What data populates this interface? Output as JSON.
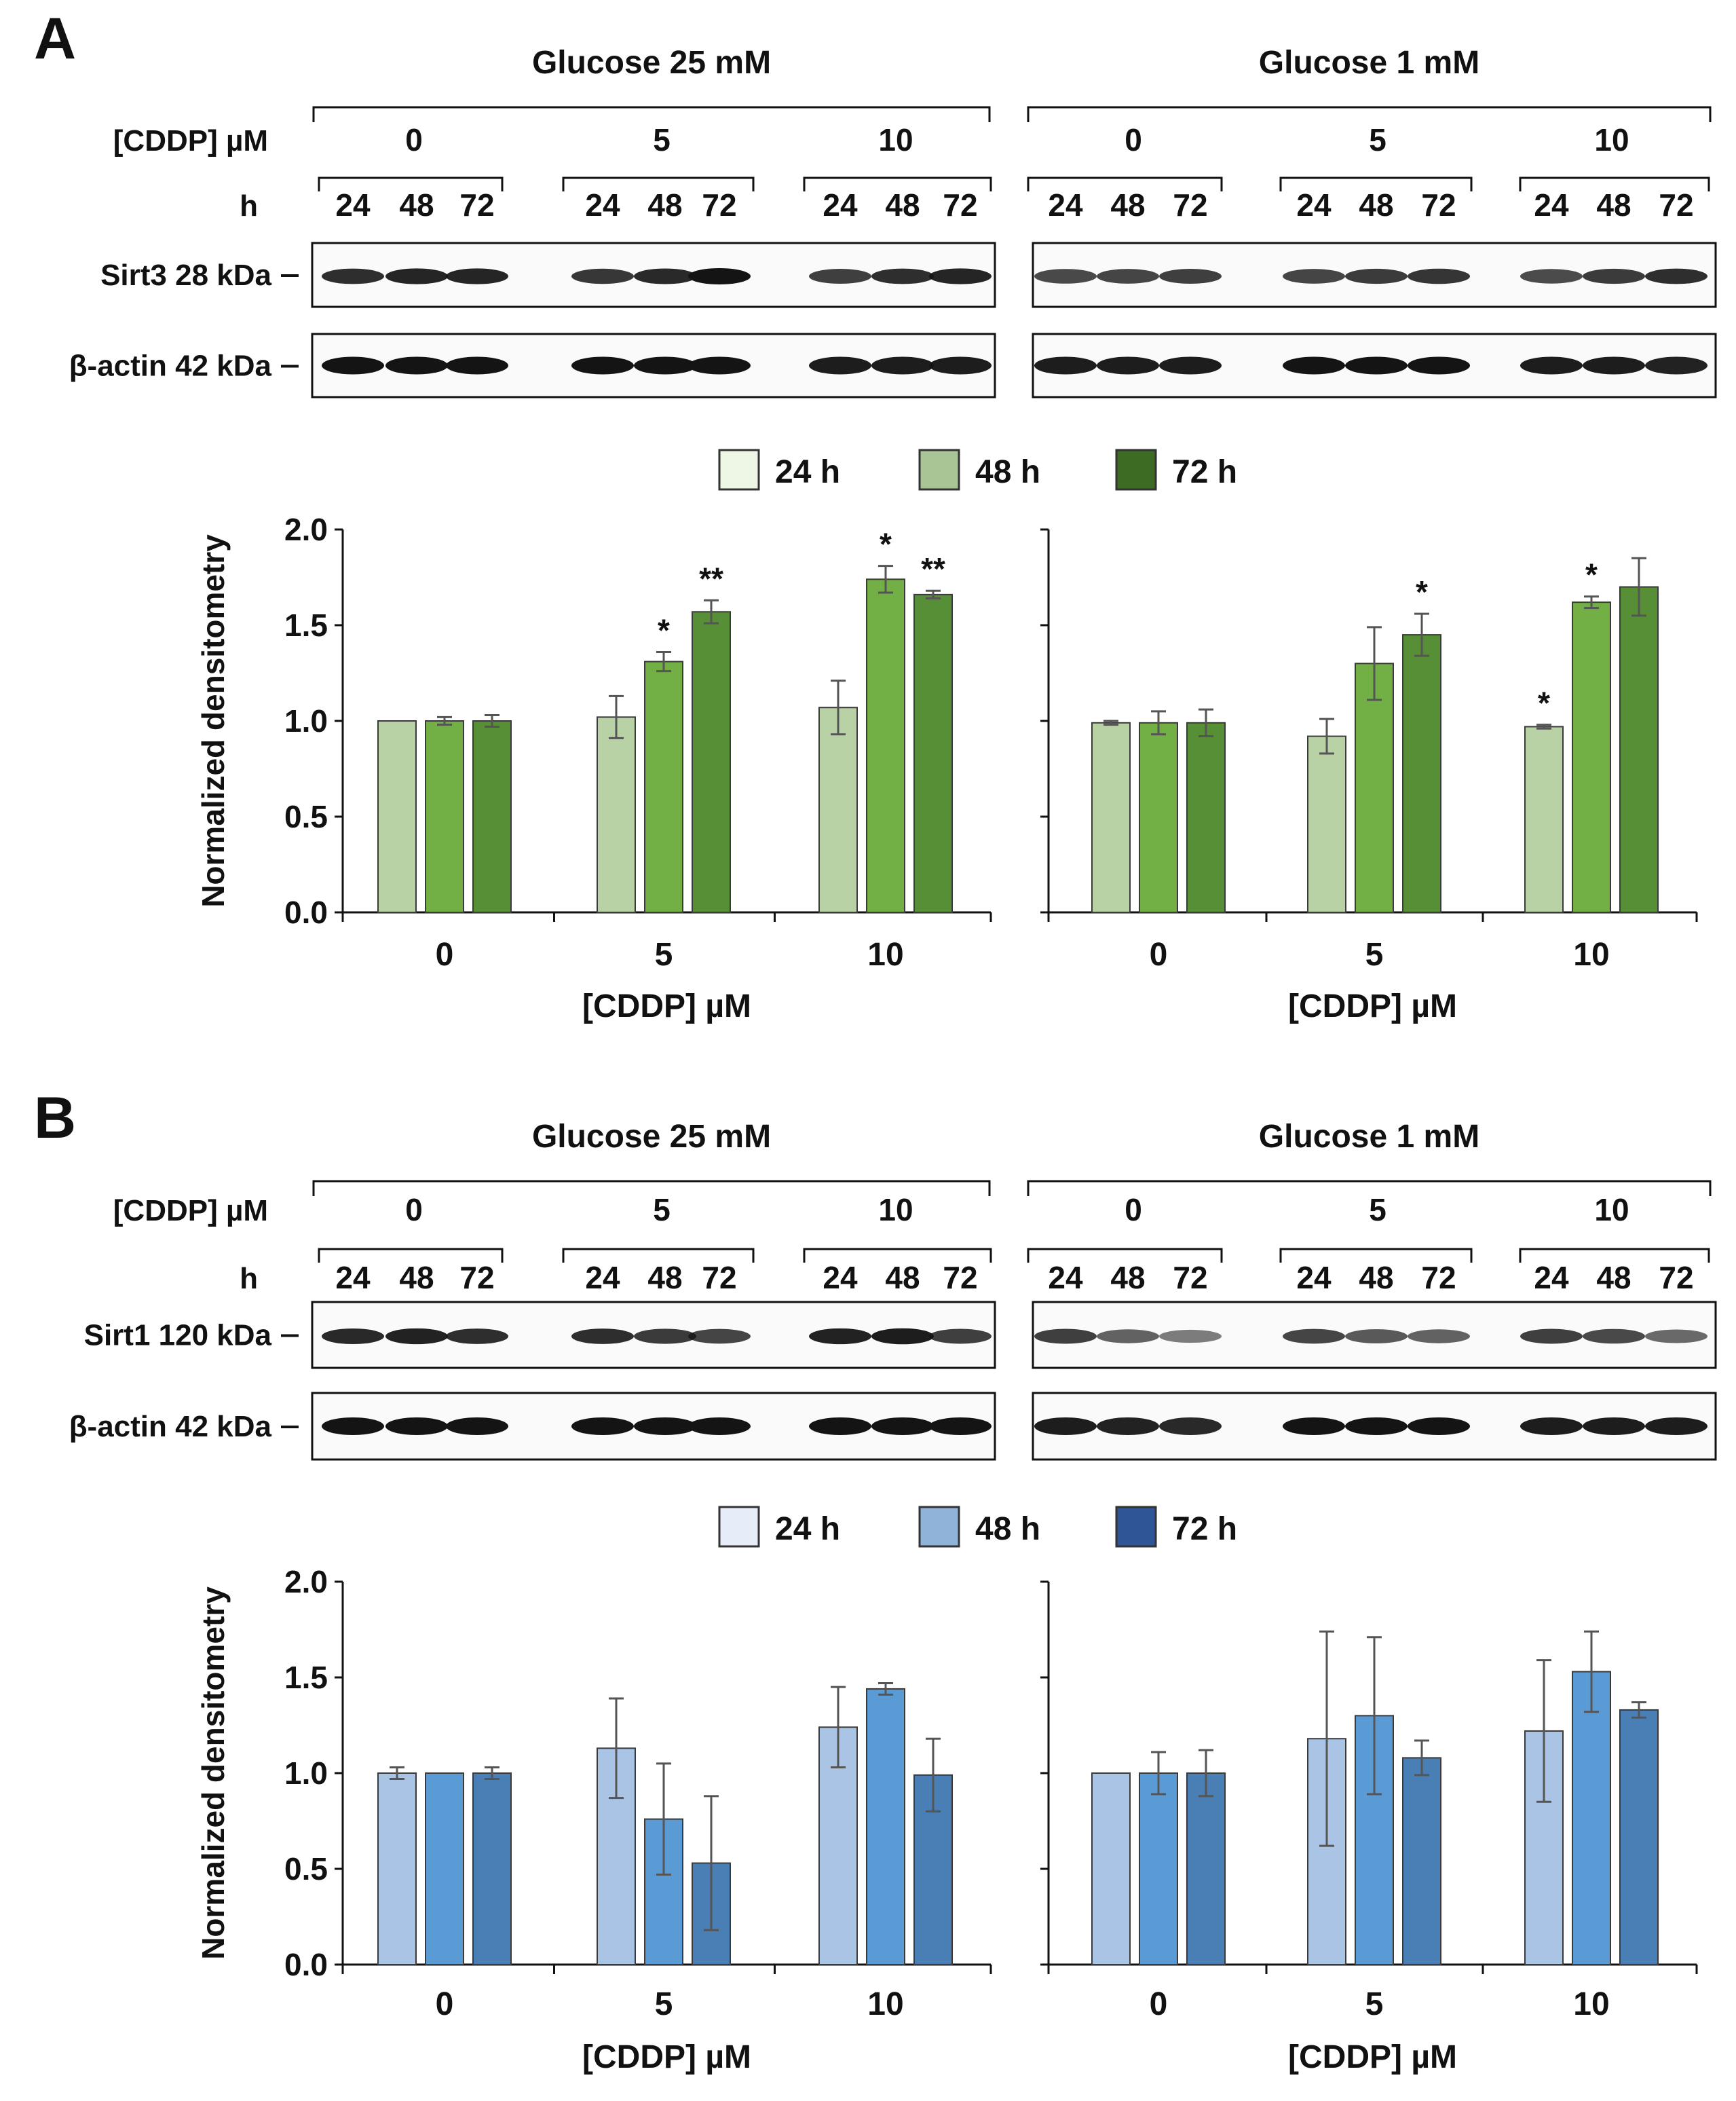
{
  "panels": [
    {
      "letter": "A",
      "protein_label": "Sirt3 28 kDa",
      "loading_label": "β-actin 42 kDa",
      "conditions": [
        "Glucose 25 mM",
        "Glucose 1 mM"
      ],
      "cddp_row_label": "[CDDP] µM",
      "h_row_label": "h",
      "dose_labels": [
        "0",
        "5",
        "10"
      ],
      "time_labels": [
        "24",
        "48",
        "72"
      ],
      "legend": [
        "24 h",
        "48 h",
        "72 h"
      ],
      "legend_colors": [
        "#eef6e6",
        "#a9c495",
        "#3e6b24"
      ],
      "bar_colors": [
        "#b8d2a6",
        "#72b046",
        "#568f35"
      ],
      "blot_intensity": [
        [
          [
            0.85,
            0.9,
            0.9,
            0.8,
            0.88,
            1.0,
            0.75,
            0.85,
            0.9
          ],
          [
            0.7,
            0.72,
            0.75,
            0.72,
            0.78,
            0.82,
            0.68,
            0.78,
            0.85
          ]
        ],
        [
          [
            1.0,
            1.0,
            1.0,
            1.0,
            1.0,
            1.0,
            0.95,
            0.95,
            0.95
          ],
          [
            0.95,
            0.95,
            0.95,
            1.0,
            1.0,
            1.0,
            0.95,
            0.95,
            0.92
          ]
        ]
      ],
      "significance": [
        [
          "",
          "",
          "",
          "",
          "*",
          "**",
          "",
          "*",
          "**"
        ],
        [
          "",
          "",
          "",
          "",
          "",
          "*",
          "*",
          "*",
          ""
        ]
      ],
      "chart_data": [
        {
          "type": "bar",
          "title": "Sirt3 — Glucose 25 mM",
          "categories": [
            "0",
            "5",
            "10"
          ],
          "series": [
            {
              "name": "24 h",
              "values": [
                1.0,
                1.02,
                1.07
              ],
              "errors": [
                0.0,
                0.11,
                0.14
              ]
            },
            {
              "name": "48 h",
              "values": [
                1.0,
                1.31,
                1.74
              ],
              "errors": [
                0.02,
                0.05,
                0.07
              ]
            },
            {
              "name": "72 h",
              "values": [
                1.0,
                1.57,
                1.66
              ],
              "errors": [
                0.03,
                0.06,
                0.02
              ]
            }
          ],
          "xlabel": "[CDDP] µM",
          "ylabel": "Normalized densitometry",
          "ylim": [
            0,
            2.0
          ],
          "yticks": [
            "0.0",
            "0.5",
            "1.0",
            "1.5",
            "2.0"
          ]
        },
        {
          "type": "bar",
          "title": "Sirt3 — Glucose 1 mM",
          "categories": [
            "0",
            "5",
            "10"
          ],
          "series": [
            {
              "name": "24 h",
              "values": [
                0.99,
                0.92,
                0.97
              ],
              "errors": [
                0.01,
                0.09,
                0.01
              ]
            },
            {
              "name": "48 h",
              "values": [
                0.99,
                1.3,
                1.62
              ],
              "errors": [
                0.06,
                0.19,
                0.03
              ]
            },
            {
              "name": "72 h",
              "values": [
                0.99,
                1.45,
                1.7
              ],
              "errors": [
                0.07,
                0.11,
                0.15
              ]
            }
          ],
          "xlabel": "[CDDP] µM",
          "ylabel": "",
          "ylim": [
            0,
            2.0
          ],
          "yticks": []
        }
      ]
    },
    {
      "letter": "B",
      "protein_label": "Sirt1 120 kDa",
      "loading_label": "β-actin 42 kDa",
      "conditions": [
        "Glucose 25 mM",
        "Glucose 1 mM"
      ],
      "cddp_row_label": "[CDDP] µM",
      "h_row_label": "h",
      "dose_labels": [
        "0",
        "5",
        "10"
      ],
      "time_labels": [
        "24",
        "48",
        "72"
      ],
      "legend": [
        "24 h",
        "48 h",
        "72 h"
      ],
      "legend_colors": [
        "#e6ecf8",
        "#8fb3d9",
        "#2f5597"
      ],
      "bar_colors": [
        "#aac4e6",
        "#5b9bd5",
        "#4a7fb5"
      ],
      "blot_intensity": [
        [
          [
            0.88,
            0.92,
            0.85,
            0.85,
            0.78,
            0.72,
            0.92,
            0.95,
            0.75
          ],
          [
            0.75,
            0.55,
            0.4,
            0.72,
            0.6,
            0.55,
            0.75,
            0.7,
            0.5
          ]
        ],
        [
          [
            1.0,
            1.0,
            1.0,
            1.0,
            1.0,
            1.0,
            1.0,
            1.0,
            1.0
          ],
          [
            0.95,
            0.92,
            0.88,
            1.0,
            1.0,
            1.0,
            0.95,
            0.95,
            0.95
          ]
        ]
      ],
      "significance": [
        [
          "",
          "",
          "",
          "",
          "",
          "",
          "",
          "",
          ""
        ],
        [
          "",
          "",
          "",
          "",
          "",
          "",
          "",
          "",
          ""
        ]
      ],
      "chart_data": [
        {
          "type": "bar",
          "title": "Sirt1 — Glucose 25 mM",
          "categories": [
            "0",
            "5",
            "10"
          ],
          "series": [
            {
              "name": "24 h",
              "values": [
                1.0,
                1.13,
                1.24
              ],
              "errors": [
                0.03,
                0.26,
                0.21
              ]
            },
            {
              "name": "48 h",
              "values": [
                1.0,
                0.76,
                1.44
              ],
              "errors": [
                0.0,
                0.29,
                0.03
              ]
            },
            {
              "name": "72 h",
              "values": [
                1.0,
                0.53,
                0.99
              ],
              "errors": [
                0.03,
                0.35,
                0.19
              ]
            }
          ],
          "xlabel": "[CDDP] µM",
          "ylabel": "Normalized densitometry",
          "ylim": [
            0,
            2.0
          ],
          "yticks": [
            "0.0",
            "0.5",
            "1.0",
            "1.5",
            "2.0"
          ]
        },
        {
          "type": "bar",
          "title": "Sirt1 — Glucose 1 mM",
          "categories": [
            "0",
            "5",
            "10"
          ],
          "series": [
            {
              "name": "24 h",
              "values": [
                1.0,
                1.18,
                1.22
              ],
              "errors": [
                0.0,
                0.56,
                0.37
              ]
            },
            {
              "name": "48 h",
              "values": [
                1.0,
                1.3,
                1.53
              ],
              "errors": [
                0.11,
                0.41,
                0.21
              ]
            },
            {
              "name": "72 h",
              "values": [
                1.0,
                1.08,
                1.33
              ],
              "errors": [
                0.12,
                0.09,
                0.04
              ]
            }
          ],
          "xlabel": "[CDDP] µM",
          "ylabel": "",
          "ylim": [
            0,
            2.0
          ],
          "yticks": []
        }
      ]
    }
  ]
}
